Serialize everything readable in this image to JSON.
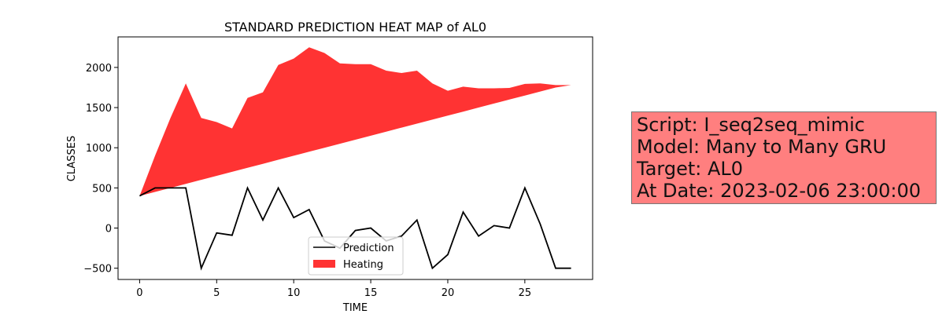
{
  "chart_data": {
    "type": "area",
    "title": "STANDARD PREDICTION HEAT MAP of AL0",
    "xlabel": "TIME",
    "ylabel": "CLASSES",
    "xlim": [
      -1.4,
      29.4
    ],
    "ylim": [
      -640,
      2380
    ],
    "xticks": [
      0,
      5,
      10,
      15,
      20,
      25
    ],
    "yticks": [
      -500,
      0,
      500,
      1000,
      1500,
      2000
    ],
    "grid": false,
    "legend_position": "lower-center",
    "x": [
      0,
      1,
      2,
      3,
      4,
      5,
      6,
      7,
      8,
      9,
      10,
      11,
      12,
      13,
      14,
      15,
      16,
      17,
      18,
      19,
      20,
      21,
      22,
      23,
      24,
      25,
      26,
      27,
      28
    ],
    "series": [
      {
        "name": "Prediction",
        "type": "line",
        "color": "#000000",
        "values": [
          400,
          500,
          500,
          500,
          -500,
          -60,
          -90,
          500,
          100,
          500,
          130,
          230,
          -160,
          -250,
          -30,
          0,
          -160,
          -100,
          100,
          -500,
          -330,
          200,
          -100,
          30,
          0,
          500,
          50,
          -500,
          -500
        ]
      },
      {
        "name": "Heating",
        "type": "area",
        "color": "#ff0000",
        "alpha": 0.8,
        "lower": [
          400,
          450,
          500,
          550,
          600,
          650,
          700,
          750,
          800,
          850,
          900,
          950,
          1000,
          1050,
          1100,
          1150,
          1200,
          1250,
          1300,
          1350,
          1400,
          1450,
          1500,
          1550,
          1600,
          1650,
          1700,
          1750,
          1780
        ],
        "upper": [
          400,
          900,
          1370,
          1800,
          1370,
          1320,
          1240,
          1620,
          1690,
          2030,
          2110,
          2250,
          2180,
          2050,
          2040,
          2040,
          1960,
          1930,
          1960,
          1800,
          1710,
          1760,
          1740,
          1740,
          1745,
          1795,
          1800,
          1780,
          1780
        ]
      }
    ]
  },
  "info_box": {
    "background": "#ff7f7f",
    "lines": [
      "Script: I_seq2seq_mimic",
      "Model: Many to Many GRU",
      "Target: AL0",
      "At Date: 2023-02-06 23:00:00"
    ]
  }
}
